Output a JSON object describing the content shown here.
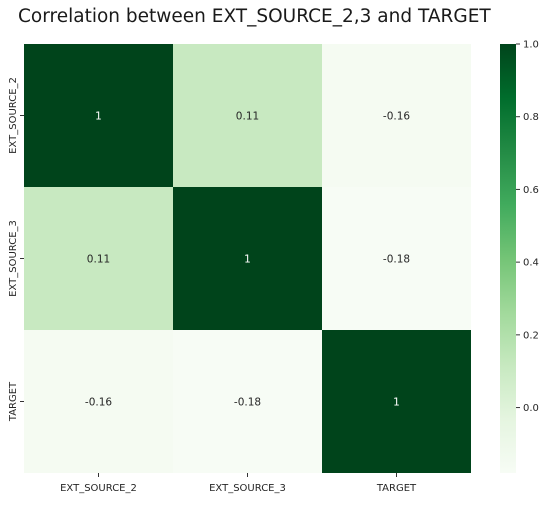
{
  "chart_data": {
    "type": "heatmap",
    "title": "Correlation between EXT_SOURCE_2,3 and TARGET",
    "x_labels": [
      "EXT_SOURCE_2",
      "EXT_SOURCE_3",
      "TARGET"
    ],
    "y_labels": [
      "EXT_SOURCE_2",
      "EXT_SOURCE_3",
      "TARGET"
    ],
    "values": [
      [
        1,
        0.11,
        -0.16
      ],
      [
        0.11,
        1,
        -0.18
      ],
      [
        -0.16,
        -0.18,
        1
      ]
    ],
    "annotations": [
      [
        "1",
        "0.11",
        "-0.16"
      ],
      [
        "0.11",
        "1",
        "-0.18"
      ],
      [
        "-0.16",
        "-0.18",
        "1"
      ]
    ],
    "colorbar": {
      "range": [
        -0.18,
        1
      ],
      "ticks": [
        "1.0",
        "0.8",
        "0.6",
        "0.4",
        "0.2",
        "0.0"
      ],
      "tick_values": [
        1.0,
        0.8,
        0.6,
        0.4,
        0.2,
        0.0
      ],
      "colormap": "Greens",
      "colors": [
        "#f7fcf5",
        "#e5f5e0",
        "#c7e9c0",
        "#a1d99b",
        "#74c476",
        "#41ab5d",
        "#238b45",
        "#006d2c",
        "#00441b"
      ]
    },
    "grid": false
  }
}
